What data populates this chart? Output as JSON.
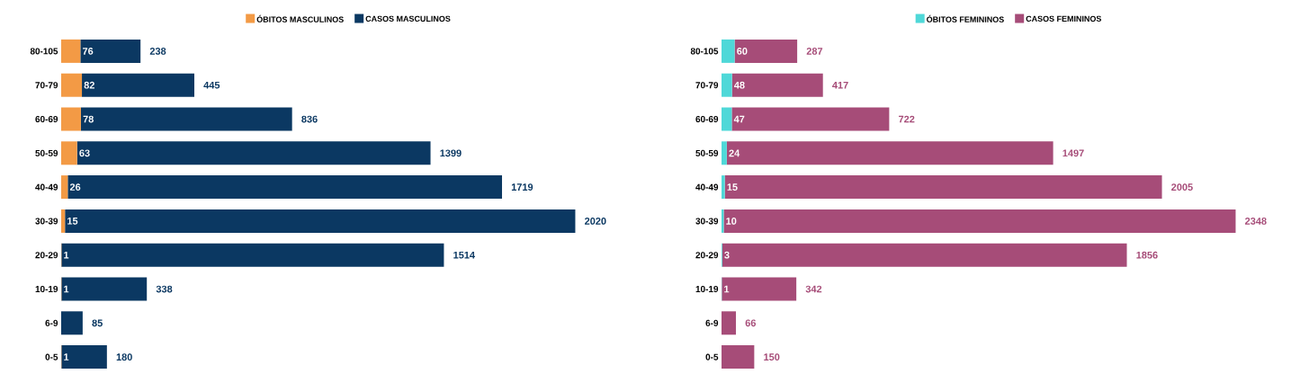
{
  "chart_data": [
    {
      "type": "bar",
      "orientation": "horizontal",
      "stacked": true,
      "legend": "top",
      "tick_labels": "y",
      "categories": [
        "80-105",
        "70-79",
        "60-69",
        "50-59",
        "40-49",
        "30-39",
        "20-29",
        "10-19",
        "6-9",
        "0-5"
      ],
      "series": [
        {
          "name": "ÓBITOS MASCULINOS",
          "color": "#f39a45",
          "values": [
            76,
            82,
            78,
            63,
            26,
            15,
            1,
            1,
            0,
            1
          ],
          "value_labels": [
            "76",
            "82",
            "78",
            "63",
            "26",
            "15",
            "1",
            "1",
            null,
            "1"
          ]
        },
        {
          "name": "CASOS MASCULINOS",
          "color": "#0b3862",
          "values": [
            238,
            445,
            836,
            1399,
            1719,
            2020,
            1514,
            338,
            85,
            180
          ],
          "value_labels": [
            "238",
            "445",
            "836",
            "1399",
            "1719",
            "2020",
            "1514",
            "338",
            "85",
            "180"
          ]
        }
      ]
    },
    {
      "type": "bar",
      "orientation": "horizontal",
      "stacked": true,
      "legend": "top",
      "tick_labels": "y",
      "categories": [
        "80-105",
        "70-79",
        "60-69",
        "50-59",
        "40-49",
        "30-39",
        "20-29",
        "10-19",
        "6-9",
        "0-5"
      ],
      "series": [
        {
          "name": "ÓBITOS FEMININOS",
          "color": "#4fd8d8",
          "values": [
            60,
            48,
            47,
            24,
            15,
            10,
            3,
            1,
            0,
            0
          ],
          "value_labels": [
            "60",
            "48",
            "47",
            "24",
            "15",
            "10",
            "3",
            "1",
            null,
            null
          ]
        },
        {
          "name": "CASOS FEMININOS",
          "color": "#a64c78",
          "values": [
            287,
            417,
            722,
            1497,
            2005,
            2348,
            1856,
            342,
            66,
            150
          ],
          "value_labels": [
            "287",
            "417",
            "722",
            "1497",
            "2005",
            "2348",
            "1856",
            "342",
            "66",
            "150"
          ]
        }
      ]
    }
  ]
}
